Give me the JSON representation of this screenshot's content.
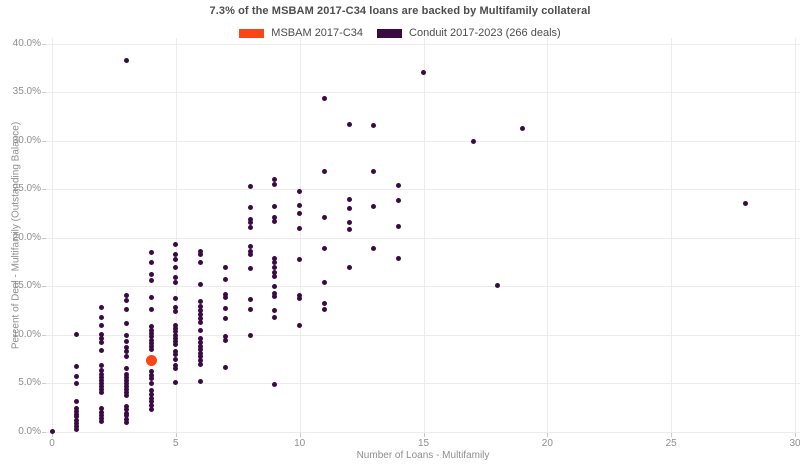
{
  "chart": {
    "title": "7.3% of the MSBAM 2017-C34 loans are backed by Multifamily collateral",
    "legend": [
      {
        "label": "MSBAM 2017-C34",
        "color": "#FA4616"
      },
      {
        "label": "Conduit 2017-2023 (266 deals)",
        "color": "#3B0A45"
      }
    ]
  },
  "chart_data": {
    "type": "scatter",
    "title": "7.3% of the MSBAM 2017-C34 loans are backed by Multifamily collateral",
    "xlabel": "Number of Loans - Multifamily",
    "ylabel": "Percent of Deal - Multifamily (Outstanding Balance)",
    "xlim": [
      0,
      30
    ],
    "ylim": [
      0,
      40
    ],
    "x_ticks": [
      0,
      5,
      10,
      15,
      20,
      25,
      30
    ],
    "x_tick_labels": [
      "0",
      "5",
      "10",
      "15",
      "20",
      "25",
      "30"
    ],
    "y_ticks": [
      0,
      5,
      10,
      15,
      20,
      25,
      30,
      35,
      40
    ],
    "y_tick_labels": [
      "0.0%",
      "5.0%",
      "10.0%",
      "15.0%",
      "20.0%",
      "25.0%",
      "30.0%",
      "35.0%",
      "40.0%"
    ],
    "grid": true,
    "legend_position": "top-center",
    "series": [
      {
        "name": "Conduit 2017-2023 (266 deals)",
        "color": "#3B0A45",
        "marker_size": 5,
        "points": [
          [
            0,
            0.0
          ],
          [
            1,
            10.0
          ],
          [
            1,
            6.7
          ],
          [
            1,
            5.7
          ],
          [
            1,
            5.0
          ],
          [
            1,
            3.1
          ],
          [
            1,
            2.4
          ],
          [
            1,
            2.1
          ],
          [
            1,
            1.8
          ],
          [
            1,
            1.5
          ],
          [
            1,
            1.1
          ],
          [
            1,
            0.8
          ],
          [
            1,
            0.5
          ],
          [
            1,
            0.2
          ],
          [
            2,
            12.8
          ],
          [
            2,
            11.8
          ],
          [
            2,
            10.9
          ],
          [
            2,
            10.0
          ],
          [
            2,
            9.6
          ],
          [
            2,
            9.2
          ],
          [
            2,
            8.3
          ],
          [
            2,
            6.8
          ],
          [
            2,
            6.3
          ],
          [
            2,
            5.9
          ],
          [
            2,
            5.6
          ],
          [
            2,
            5.3
          ],
          [
            2,
            5.0
          ],
          [
            2,
            4.6
          ],
          [
            2,
            4.3
          ],
          [
            2,
            4.0
          ],
          [
            2,
            2.4
          ],
          [
            2,
            2.0
          ],
          [
            2,
            1.7
          ],
          [
            2,
            1.3
          ],
          [
            2,
            1.0
          ],
          [
            3,
            38.2
          ],
          [
            3,
            14.0
          ],
          [
            3,
            13.5
          ],
          [
            3,
            12.6
          ],
          [
            3,
            11.1
          ],
          [
            3,
            9.9
          ],
          [
            3,
            9.3
          ],
          [
            3,
            8.7
          ],
          [
            3,
            8.2
          ],
          [
            3,
            7.7
          ],
          [
            3,
            6.5
          ],
          [
            3,
            5.9
          ],
          [
            3,
            5.6
          ],
          [
            3,
            5.3
          ],
          [
            3,
            5.0
          ],
          [
            3,
            4.6
          ],
          [
            3,
            4.3
          ],
          [
            3,
            4.0
          ],
          [
            3,
            3.7
          ],
          [
            3,
            2.6
          ],
          [
            3,
            2.3
          ],
          [
            3,
            1.9
          ],
          [
            3,
            1.6
          ],
          [
            3,
            1.2
          ],
          [
            3,
            0.9
          ],
          [
            4,
            18.5
          ],
          [
            4,
            17.4
          ],
          [
            4,
            16.2
          ],
          [
            4,
            15.6
          ],
          [
            4,
            13.8
          ],
          [
            4,
            12.6
          ],
          [
            4,
            10.8
          ],
          [
            4,
            10.4
          ],
          [
            4,
            10.1
          ],
          [
            4,
            9.8
          ],
          [
            4,
            9.4
          ],
          [
            4,
            9.1
          ],
          [
            4,
            8.8
          ],
          [
            4,
            8.5
          ],
          [
            4,
            6.2
          ],
          [
            4,
            5.8
          ],
          [
            4,
            5.5
          ],
          [
            4,
            5.0
          ],
          [
            4,
            4.2
          ],
          [
            4,
            3.8
          ],
          [
            4,
            3.4
          ],
          [
            4,
            3.1
          ],
          [
            4,
            2.7
          ],
          [
            4,
            2.3
          ],
          [
            5,
            19.3
          ],
          [
            5,
            18.2
          ],
          [
            5,
            17.7
          ],
          [
            5,
            16.9
          ],
          [
            5,
            15.9
          ],
          [
            5,
            15.4
          ],
          [
            5,
            13.7
          ],
          [
            5,
            12.8
          ],
          [
            5,
            12.4
          ],
          [
            5,
            10.9
          ],
          [
            5,
            10.6
          ],
          [
            5,
            10.3
          ],
          [
            5,
            9.9
          ],
          [
            5,
            9.6
          ],
          [
            5,
            9.3
          ],
          [
            5,
            9.0
          ],
          [
            5,
            8.2
          ],
          [
            5,
            7.9
          ],
          [
            5,
            7.4
          ],
          [
            5,
            6.8
          ],
          [
            5,
            6.5
          ],
          [
            5,
            5.1
          ],
          [
            6,
            18.6
          ],
          [
            6,
            18.2
          ],
          [
            6,
            17.4
          ],
          [
            6,
            15.2
          ],
          [
            6,
            13.4
          ],
          [
            6,
            12.9
          ],
          [
            6,
            12.5
          ],
          [
            6,
            12.1
          ],
          [
            6,
            11.7
          ],
          [
            6,
            11.2
          ],
          [
            6,
            10.4
          ],
          [
            6,
            9.6
          ],
          [
            6,
            9.2
          ],
          [
            6,
            8.8
          ],
          [
            6,
            8.5
          ],
          [
            6,
            8.0
          ],
          [
            6,
            7.7
          ],
          [
            6,
            7.3
          ],
          [
            6,
            6.9
          ],
          [
            6,
            5.2
          ],
          [
            7,
            16.9
          ],
          [
            7,
            15.7
          ],
          [
            7,
            14.1
          ],
          [
            7,
            13.8
          ],
          [
            7,
            12.7
          ],
          [
            7,
            11.7
          ],
          [
            7,
            9.8
          ],
          [
            7,
            9.4
          ],
          [
            7,
            6.6
          ],
          [
            8,
            25.3
          ],
          [
            8,
            23.1
          ],
          [
            8,
            21.9
          ],
          [
            8,
            21.5
          ],
          [
            8,
            21.0
          ],
          [
            8,
            19.1
          ],
          [
            8,
            18.6
          ],
          [
            8,
            18.2
          ],
          [
            8,
            16.8
          ],
          [
            8,
            13.6
          ],
          [
            8,
            12.6
          ],
          [
            8,
            9.9
          ],
          [
            9,
            26.0
          ],
          [
            9,
            25.5
          ],
          [
            9,
            23.2
          ],
          [
            9,
            22.1
          ],
          [
            9,
            21.6
          ],
          [
            9,
            17.8
          ],
          [
            9,
            17.4
          ],
          [
            9,
            16.9
          ],
          [
            9,
            16.4
          ],
          [
            9,
            16.0
          ],
          [
            9,
            15.0
          ],
          [
            9,
            14.2
          ],
          [
            9,
            13.9
          ],
          [
            9,
            12.5
          ],
          [
            9,
            11.8
          ],
          [
            9,
            4.8
          ],
          [
            10,
            24.7
          ],
          [
            10,
            23.3
          ],
          [
            10,
            22.5
          ],
          [
            10,
            20.9
          ],
          [
            10,
            17.7
          ],
          [
            10,
            14.0
          ],
          [
            10,
            13.7
          ],
          [
            10,
            10.9
          ],
          [
            11,
            34.3
          ],
          [
            11,
            26.8
          ],
          [
            11,
            22.1
          ],
          [
            11,
            18.9
          ],
          [
            11,
            15.4
          ],
          [
            11,
            13.2
          ],
          [
            11,
            12.6
          ],
          [
            12,
            31.7
          ],
          [
            12,
            23.9
          ],
          [
            12,
            23.0
          ],
          [
            12,
            21.5
          ],
          [
            12,
            20.8
          ],
          [
            12,
            16.9
          ],
          [
            13,
            31.5
          ],
          [
            13,
            26.8
          ],
          [
            13,
            23.2
          ],
          [
            13,
            18.9
          ],
          [
            14,
            25.4
          ],
          [
            14,
            23.8
          ],
          [
            14,
            21.1
          ],
          [
            14,
            17.8
          ],
          [
            15,
            37.0
          ],
          [
            17,
            29.9
          ],
          [
            18,
            15.1
          ],
          [
            19,
            31.2
          ],
          [
            28,
            23.5
          ]
        ]
      },
      {
        "name": "MSBAM 2017-C34",
        "color": "#FA4616",
        "marker_size": 11,
        "points": [
          [
            4,
            7.3
          ]
        ]
      }
    ]
  }
}
